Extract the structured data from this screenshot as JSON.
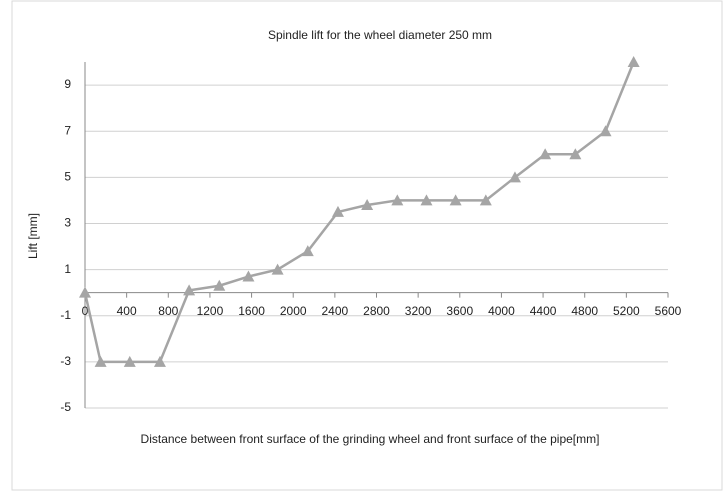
{
  "chart_data": {
    "type": "line",
    "title": "Spindle lift for the wheel diameter 250 mm",
    "xlabel": "Distance between front surface of the grinding wheel and front surface of the pipe[mm]",
    "ylabel": "Lift [mm]",
    "x": [
      0,
      150,
      430,
      720,
      1000,
      1290,
      1570,
      1850,
      2140,
      2430,
      2710,
      3000,
      3280,
      3560,
      3850,
      4130,
      4420,
      4710,
      5000,
      5270
    ],
    "series": [
      {
        "name": "Lift",
        "color": "#a5a5a5",
        "values": [
          0,
          -3,
          -3,
          -3,
          0.1,
          0.3,
          0.7,
          1.0,
          1.8,
          3.5,
          3.8,
          4,
          4,
          4,
          4,
          5,
          6,
          6,
          7,
          10
        ]
      }
    ],
    "xlim": [
      0,
      5600
    ],
    "xticks": [
      0,
      400,
      800,
      1200,
      1600,
      2000,
      2400,
      2800,
      3200,
      3600,
      4000,
      4400,
      4800,
      5200,
      5600
    ],
    "ylim": [
      -5,
      10
    ],
    "yticks": [
      -5,
      -3,
      -1,
      1,
      3,
      5,
      7,
      9
    ],
    "grid": true
  }
}
